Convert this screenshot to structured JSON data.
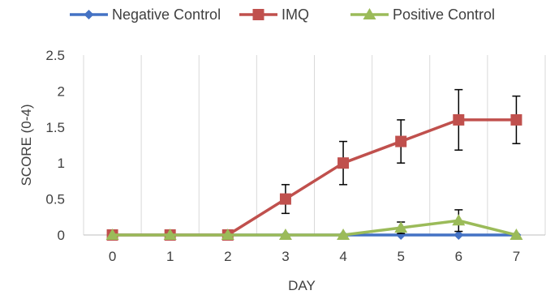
{
  "chart_data": {
    "type": "line",
    "title": "",
    "xlabel": "DAY",
    "ylabel": "SCORE (0-4)",
    "x": [
      0,
      1,
      2,
      3,
      4,
      5,
      6,
      7
    ],
    "x_tick_labels": [
      "0",
      "1",
      "2",
      "3",
      "4",
      "5",
      "6",
      "7"
    ],
    "ylim": [
      0,
      2.5
    ],
    "y_ticks": [
      0,
      0.5,
      1,
      1.5,
      2,
      2.5
    ],
    "y_tick_labels": [
      "0",
      "0.5",
      "1",
      "1.5",
      "2",
      "2.5"
    ],
    "grid": "vertical",
    "legend_position": "top",
    "series": [
      {
        "name": "Negative Control",
        "color": "#4472c4",
        "marker": "diamond",
        "values": [
          0,
          0,
          0,
          0,
          0,
          0,
          0,
          0
        ],
        "errors": [
          0,
          0,
          0,
          0,
          0,
          0,
          0,
          0
        ]
      },
      {
        "name": "IMQ",
        "color": "#c0504d",
        "marker": "square",
        "values": [
          0,
          0,
          0,
          0.5,
          1.0,
          1.3,
          1.6,
          1.6
        ],
        "errors": [
          0,
          0,
          0,
          0.2,
          0.3,
          0.3,
          0.42,
          0.33
        ]
      },
      {
        "name": "Positive Control",
        "color": "#9bbb59",
        "marker": "triangle",
        "values": [
          0,
          0,
          0,
          0,
          0,
          0.1,
          0.2,
          0
        ],
        "errors": [
          0,
          0,
          0,
          0,
          0,
          0.08,
          0.15,
          0
        ]
      }
    ]
  }
}
